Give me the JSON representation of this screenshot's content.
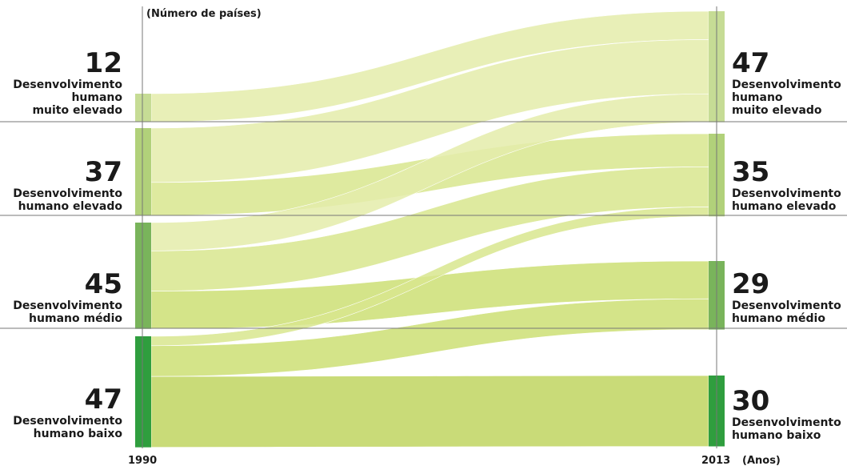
{
  "chart_data": {
    "type": "sankey",
    "unit_label": "(Número de países)",
    "x_start_label": "1990",
    "x_end_label": "2013",
    "x_unit": "(Anos)",
    "categories": [
      {
        "key": "muito_elevado",
        "lines": [
          "Desenvolvimento",
          "humano",
          "muito elevado"
        ],
        "color": "#c6dc95"
      },
      {
        "key": "elevado",
        "lines": [
          "Desenvolvimento",
          "humano elevado"
        ],
        "color": "#b1d17a"
      },
      {
        "key": "medio",
        "lines": [
          "Desenvolvimento",
          "humano médio"
        ],
        "color": "#79b45b"
      },
      {
        "key": "baixo",
        "lines": [
          "Desenvolvimento",
          "humano baixo"
        ],
        "color": "#2f9e3e"
      }
    ],
    "start_counts": [
      12,
      37,
      45,
      47
    ],
    "end_counts": [
      47,
      35,
      29,
      30
    ],
    "flows": [
      {
        "from": "muito_elevado",
        "to": "muito_elevado",
        "value": 12
      },
      {
        "from": "elevado",
        "to": "muito_elevado",
        "value": 23
      },
      {
        "from": "elevado",
        "to": "elevado",
        "value": 14
      },
      {
        "from": "medio",
        "to": "muito_elevado",
        "value": 12
      },
      {
        "from": "medio",
        "to": "elevado",
        "value": 17
      },
      {
        "from": "medio",
        "to": "medio",
        "value": 16
      },
      {
        "from": "baixo",
        "to": "elevado",
        "value": 4
      },
      {
        "from": "baixo",
        "to": "medio",
        "value": 13
      },
      {
        "from": "baixo",
        "to": "baixo",
        "value": 30
      }
    ]
  }
}
